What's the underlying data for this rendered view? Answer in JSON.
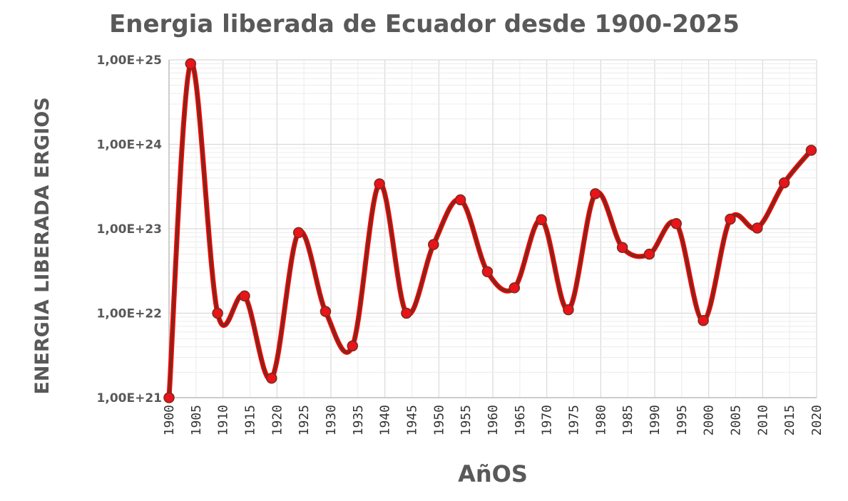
{
  "chart_data": {
    "type": "line",
    "title": "Energia liberada de Ecuador desde 1900-2025",
    "xlabel": "AñOS",
    "ylabel": "ENERGIA LIBERADA ERGIOS",
    "y_scale": "log",
    "ylim": [
      1e+21,
      1e+25
    ],
    "xlim": [
      1900,
      2020
    ],
    "y_tick_values": [
      1e+21,
      1e+22,
      1e+23,
      1e+24,
      1e+25
    ],
    "y_tick_labels": [
      "1,00E+21",
      "1,00E+22",
      "1,00E+23",
      "1,00E+24",
      "1,00E+25"
    ],
    "x_tick_labels": [
      "1900",
      "1905",
      "1910",
      "1915",
      "1920",
      "1925",
      "1930",
      "1935",
      "1940",
      "1945",
      "1950",
      "1955",
      "1960",
      "1965",
      "1970",
      "1975",
      "1980",
      "1985",
      "1990",
      "1995",
      "2000",
      "2005",
      "2010",
      "2015",
      "2020"
    ],
    "grid": true,
    "legend": "none",
    "line_color": "#7a2a1e",
    "line_glow_color": "#ff0000",
    "marker_color": "#e8141a",
    "series": [
      {
        "x": [
          1900,
          1904,
          1909,
          1914,
          1919,
          1924,
          1929,
          1934,
          1939,
          1944,
          1949,
          1954,
          1959,
          1964,
          1969,
          1974,
          1979,
          1984,
          1989,
          1994,
          1999,
          2004,
          2009,
          2014,
          2019
        ],
        "values": [
          1e+21,
          9e+24,
          1e+22,
          1.6e+22,
          1.7e+21,
          9e+22,
          1.05e+22,
          4.1e+21,
          3.4e+23,
          1e+22,
          6.5e+22,
          2.2e+23,
          3.1e+22,
          2e+22,
          1.28e+23,
          1.1e+22,
          2.6e+23,
          6e+22,
          5e+22,
          1.15e+23,
          8.2e+21,
          1.3e+23,
          1.02e+23,
          3.5e+23,
          8.5e+23
        ]
      }
    ]
  }
}
